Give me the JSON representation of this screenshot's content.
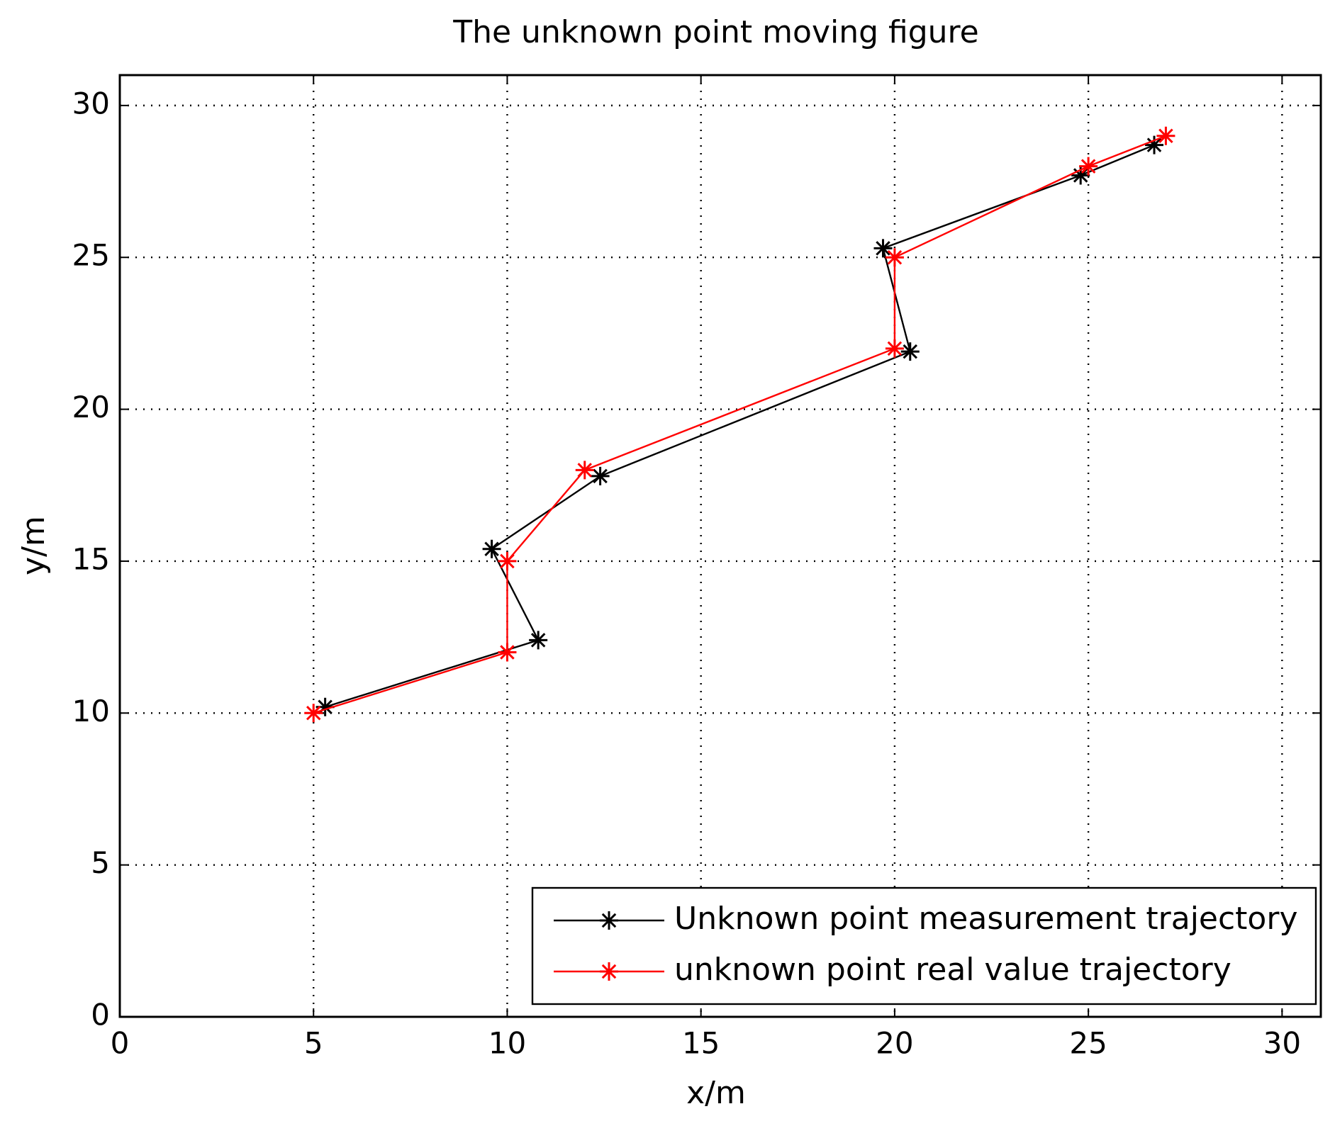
{
  "chart_data": {
    "type": "line",
    "title": "The unknown point moving figure",
    "x_label": "x/m",
    "y_label": "y/m",
    "xlim": [
      0,
      31
    ],
    "ylim": [
      0,
      31
    ],
    "xticks": [
      0,
      5,
      10,
      15,
      20,
      25,
      30
    ],
    "yticks": [
      0,
      5,
      10,
      15,
      20,
      25,
      30
    ],
    "grid": true,
    "legend": "lower right",
    "series": [
      {
        "name": "Unknown point measurement trajectory",
        "color": "#000000",
        "x": [
          5.3,
          10.8,
          9.6,
          12.4,
          20.4,
          19.7,
          24.8,
          26.7
        ],
        "values": [
          10.2,
          12.4,
          15.4,
          17.8,
          21.9,
          25.3,
          27.7,
          28.7
        ]
      },
      {
        "name": "unknown point real value trajectory",
        "color": "#ff0000",
        "x": [
          5,
          10,
          10,
          12,
          20,
          20,
          25,
          27
        ],
        "values": [
          10,
          12,
          15,
          18,
          22,
          25,
          28,
          29
        ]
      }
    ]
  }
}
